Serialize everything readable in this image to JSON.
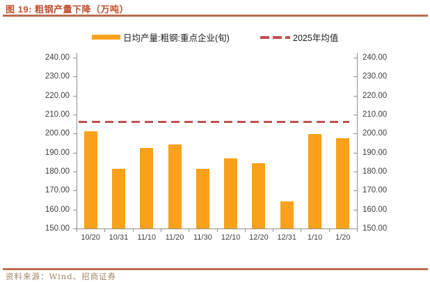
{
  "figure": {
    "title": "图 19: 粗钢产量下降（万吨）",
    "source": "资料来源：Wind、招商证券"
  },
  "legend": {
    "bar_label": "日均产量:粗钢:重点企业(旬)",
    "line_label": "2025年均值"
  },
  "colors": {
    "bar": "#F9A11B",
    "mean_line": "#C0504D",
    "title": "#C1502F",
    "rule": "#BA6C52",
    "axis": "#8C8C8C",
    "tick_text": "#3D3D3D",
    "source_text": "#A08565"
  },
  "chart_data": {
    "type": "bar",
    "title": "粗钢产量下降（万吨）",
    "categories": [
      "10/20",
      "10/31",
      "11/10",
      "11/20",
      "11/30",
      "12/10",
      "12/20",
      "12/31",
      "1/10",
      "1/20"
    ],
    "series": [
      {
        "name": "日均产量:粗钢:重点企业(旬)",
        "type": "bar",
        "values": [
          201.2,
          181.6,
          192.6,
          194.3,
          181.6,
          186.9,
          184.3,
          164.3,
          199.7,
          197.6
        ]
      },
      {
        "name": "2025年均值",
        "type": "dashed-line",
        "value": 206.2
      }
    ],
    "xlabel": "",
    "ylabel": "",
    "ylim": [
      150,
      240
    ],
    "ytick_step": 10,
    "ytick_labels": [
      "150.00",
      "160.00",
      "170.00",
      "180.00",
      "190.00",
      "200.00",
      "210.00",
      "220.00",
      "230.00",
      "240.00"
    ],
    "y_axis_sides": [
      "left",
      "right"
    ],
    "grid": false,
    "legend_position": "top-center"
  }
}
